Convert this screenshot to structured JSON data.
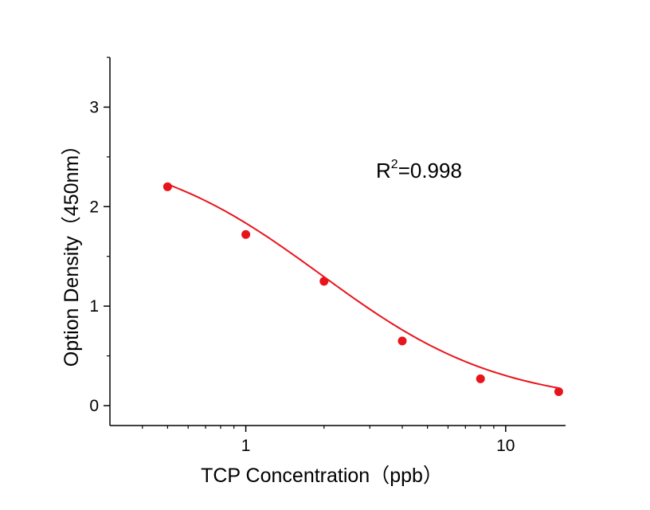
{
  "chart_data": {
    "type": "scatter",
    "xlabel": "TCP Concentration（ppb）",
    "ylabel": "Option Density（450nm）",
    "x_scale": "log",
    "xlim": [
      0.3,
      17
    ],
    "ylim": [
      -0.2,
      3.5
    ],
    "x_ticks": [
      1,
      10
    ],
    "x_tick_labels": [
      "1",
      "10"
    ],
    "y_ticks": [
      0,
      1,
      2,
      3
    ],
    "y_tick_labels": [
      "0",
      "1",
      "2",
      "3"
    ],
    "series": [
      {
        "points": [
          {
            "x": 0.5,
            "y": 2.2
          },
          {
            "x": 1,
            "y": 1.72
          },
          {
            "x": 2,
            "y": 1.25
          },
          {
            "x": 4,
            "y": 0.65
          },
          {
            "x": 8,
            "y": 0.27
          },
          {
            "x": 16,
            "y": 0.14
          }
        ],
        "color": "#e8141c"
      }
    ],
    "fit_curve": {
      "model": "4PL",
      "top": 2.63,
      "bottom": 0.0,
      "ec50": 1.95,
      "hill": 1.25,
      "color": "#e8141c"
    },
    "annotation": {
      "base": "R",
      "sup": "2",
      "text": "=0.998"
    },
    "grid": false,
    "legend": "none"
  }
}
